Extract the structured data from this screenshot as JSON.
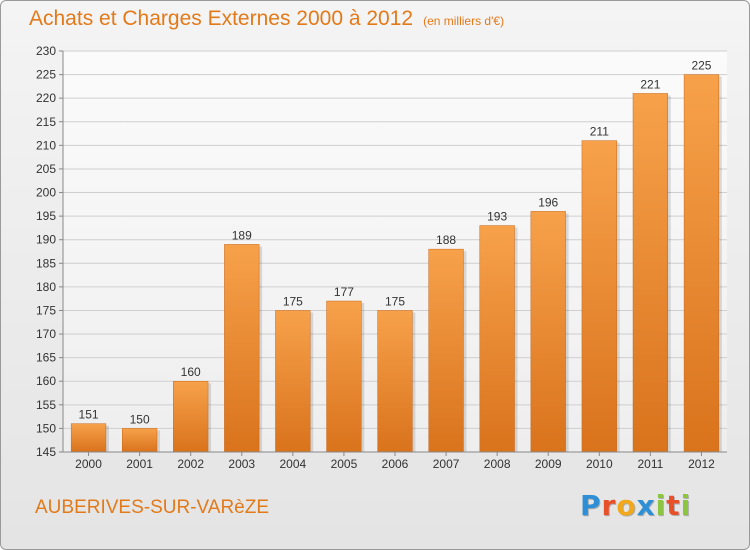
{
  "header": {
    "title": "Achats et Charges Externes 2000 à 2012",
    "subtitle": "(en milliers d'€)"
  },
  "footer": {
    "town": "AUBERIVES-SUR-VARèZE",
    "logo_letters": [
      "P",
      "r",
      "o",
      "x",
      "i",
      "t",
      "i"
    ],
    "logo_colors": [
      "#2e8fd6",
      "#e8502a",
      "#f1a81c",
      "#2e8fd6",
      "#8cc63f",
      "#e8502a",
      "#8cc63f"
    ]
  },
  "chart_data": {
    "type": "bar",
    "title": "Achats et Charges Externes 2000 à 2012",
    "categories": [
      "2000",
      "2001",
      "2002",
      "2003",
      "2004",
      "2005",
      "2006",
      "2007",
      "2008",
      "2009",
      "2010",
      "2011",
      "2012"
    ],
    "values": [
      151,
      150,
      160,
      189,
      175,
      177,
      175,
      188,
      193,
      196,
      211,
      221,
      225
    ],
    "ylim": [
      145,
      230
    ],
    "yticks": [
      145,
      150,
      155,
      160,
      165,
      170,
      175,
      180,
      185,
      190,
      195,
      200,
      205,
      210,
      215,
      220,
      225,
      230
    ],
    "grid": true,
    "bar_color": "#f0902e"
  }
}
